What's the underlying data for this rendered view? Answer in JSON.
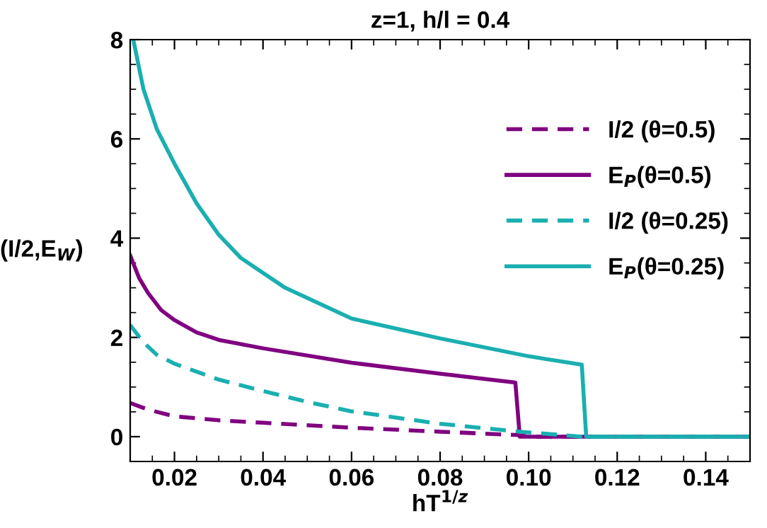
{
  "chart_data": {
    "type": "line",
    "title": "z=1, h/l = 0.4",
    "xlabel": "hT$^{1/z}$",
    "ylabel": "(I/2,E$_{W}$)",
    "xlim": [
      0.01,
      0.15
    ],
    "xticks": [
      {
        "value": 0.02,
        "label": "0.02"
      },
      {
        "value": 0.04,
        "label": "0.04"
      },
      {
        "value": 0.06,
        "label": "0.06"
      },
      {
        "value": 0.08,
        "label": "0.08"
      },
      {
        "value": 0.1,
        "label": "0.10"
      },
      {
        "value": 0.12,
        "label": "0.12"
      },
      {
        "value": 0.14,
        "label": "0.14"
      }
    ],
    "ylim": [
      -0.5,
      8
    ],
    "yticks": [
      0,
      2,
      4,
      6,
      8
    ],
    "grid": false,
    "legend": "right",
    "marker": "none",
    "series": [
      {
        "name": "I/2 (θ=0.5)",
        "color": "#800080",
        "line_style": "dashed",
        "x": [
          0.01,
          0.013,
          0.016,
          0.02,
          0.03,
          0.04,
          0.06,
          0.08,
          0.098,
          0.1,
          0.15
        ],
        "values": [
          0.68,
          0.58,
          0.5,
          0.41,
          0.33,
          0.28,
          0.18,
          0.1,
          0.03,
          0,
          0
        ]
      },
      {
        "name": "E$_{P}$(θ=0.5)",
        "color": "#800080",
        "line_style": "solid",
        "x": [
          0.01,
          0.012,
          0.014,
          0.017,
          0.02,
          0.025,
          0.03,
          0.04,
          0.06,
          0.08,
          0.097,
          0.098,
          0.15
        ],
        "values": [
          3.65,
          3.2,
          2.9,
          2.55,
          2.35,
          2.1,
          1.95,
          1.78,
          1.49,
          1.27,
          1.09,
          0,
          0
        ]
      },
      {
        "name": "I/2 (θ=0.25)",
        "color": "#1aafb0",
        "line_style": "dashed",
        "x": [
          0.01,
          0.013,
          0.016,
          0.02,
          0.03,
          0.04,
          0.05,
          0.06,
          0.08,
          0.098,
          0.112,
          0.15
        ],
        "values": [
          2.25,
          1.9,
          1.65,
          1.47,
          1.15,
          0.92,
          0.7,
          0.51,
          0.26,
          0.1,
          0,
          0
        ]
      },
      {
        "name": "E$_{P}$(θ=0.25)",
        "color": "#1aafb0",
        "line_style": "solid",
        "x": [
          0.0107,
          0.013,
          0.016,
          0.02,
          0.025,
          0.03,
          0.035,
          0.045,
          0.06,
          0.08,
          0.1,
          0.112,
          0.113,
          0.15
        ],
        "values": [
          8,
          7.0,
          6.2,
          5.5,
          4.7,
          4.07,
          3.6,
          3.0,
          2.38,
          1.98,
          1.62,
          1.45,
          0,
          0
        ]
      }
    ]
  }
}
